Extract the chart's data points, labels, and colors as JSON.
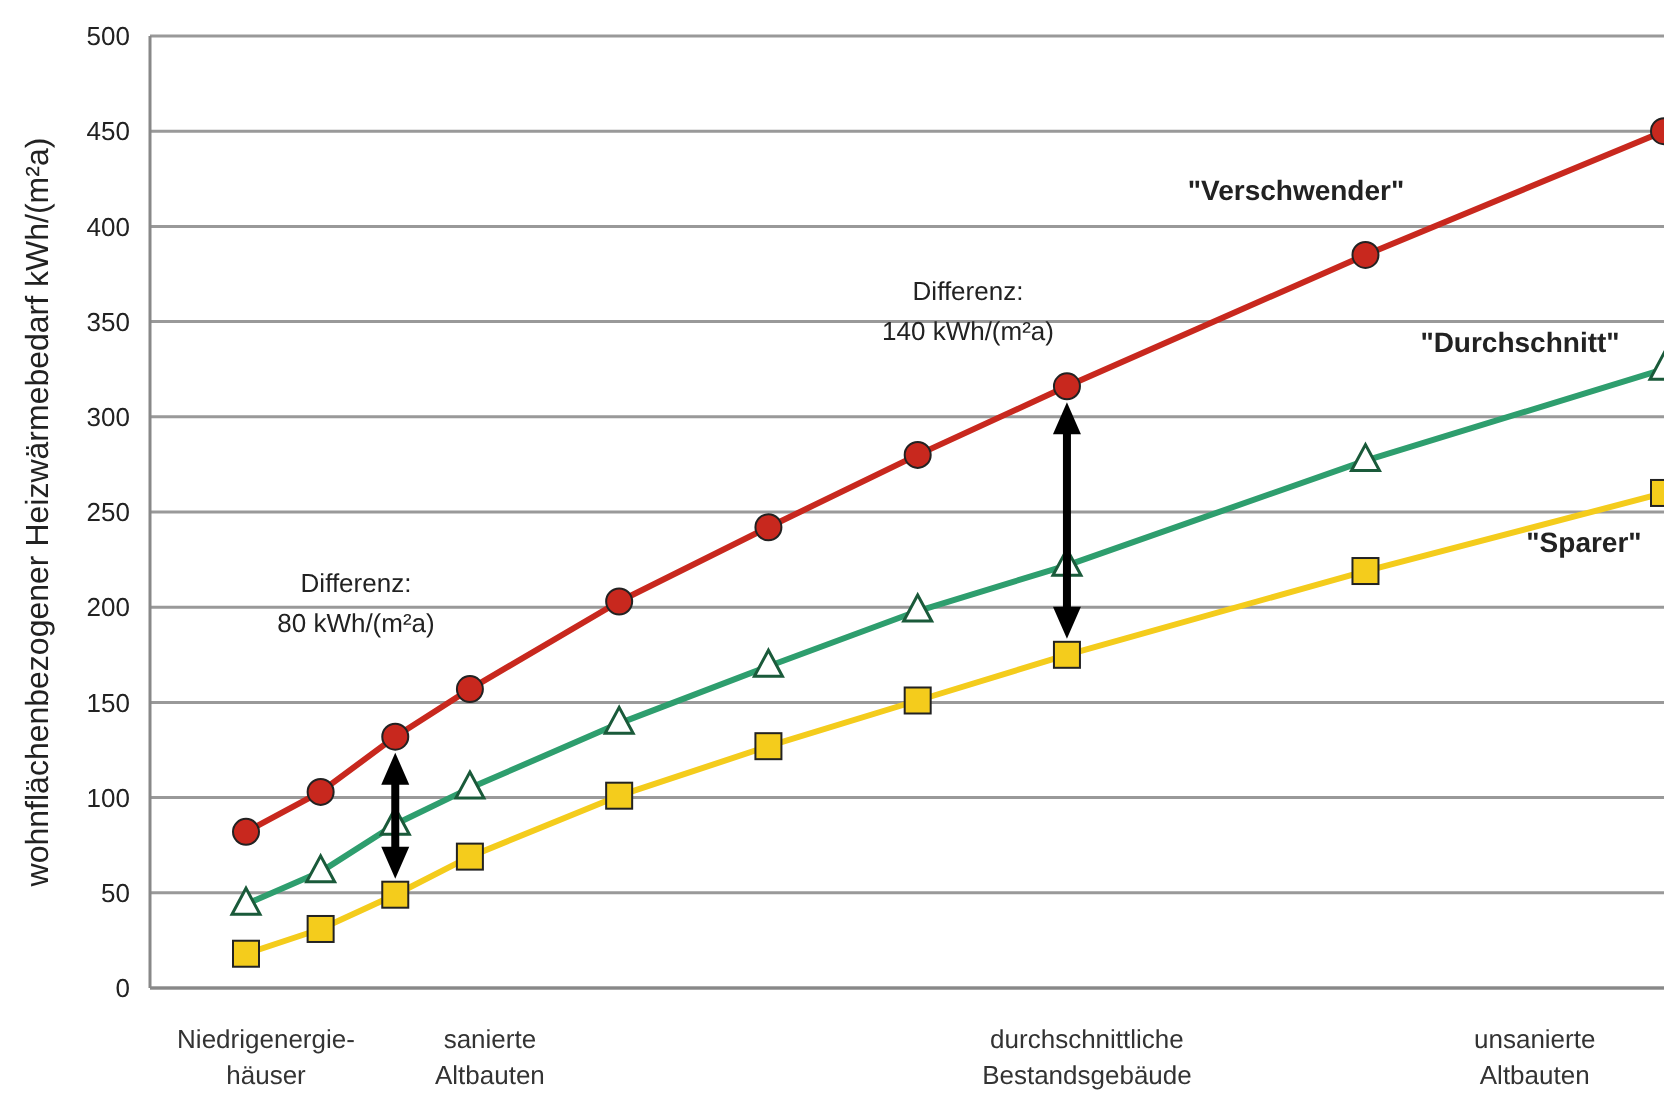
{
  "chart_data": {
    "type": "line",
    "ylabel": "wohnflächenbezogener Heizwärmebedarf kWh/(m²a)",
    "categories": [
      "Niedrigenergie-\nhäuser",
      null,
      null,
      "sanierte\nAltbauten",
      null,
      null,
      null,
      null,
      null,
      null,
      null,
      "durchschnittliche\nBestandsgebäude",
      null,
      null,
      null,
      null,
      null,
      "unsanierte\nAltbauten",
      null,
      null
    ],
    "series": [
      {
        "name": "\"Verschwender\"",
        "color": "#c8281e",
        "marker": "circle",
        "values": [
          82,
          103,
          132,
          157,
          null,
          203,
          null,
          242,
          null,
          280,
          null,
          316,
          null,
          null,
          null,
          385,
          null,
          null,
          null,
          450
        ]
      },
      {
        "name": "\"Durchschnitt\"",
        "color": "#2e9e6e",
        "marker": "triangle",
        "values": [
          44,
          61,
          86,
          105,
          null,
          139,
          null,
          169,
          null,
          198,
          null,
          222,
          null,
          null,
          null,
          277,
          null,
          null,
          null,
          325
        ]
      },
      {
        "name": "\"Sparer\"",
        "color": "#f4cc1c",
        "marker": "square",
        "values": [
          18,
          31,
          49,
          69,
          null,
          101,
          null,
          127,
          null,
          151,
          null,
          175,
          null,
          null,
          null,
          219,
          null,
          null,
          null,
          260
        ]
      }
    ],
    "ylim": [
      0,
      500
    ],
    "yticks": [
      0,
      50,
      100,
      150,
      200,
      250,
      300,
      350,
      400,
      450,
      500
    ],
    "grid": "y",
    "annotations": [
      "Differenz:\n80 kWh/(m²a)",
      "Differenz:\n140 kWh/(m²a)"
    ]
  }
}
